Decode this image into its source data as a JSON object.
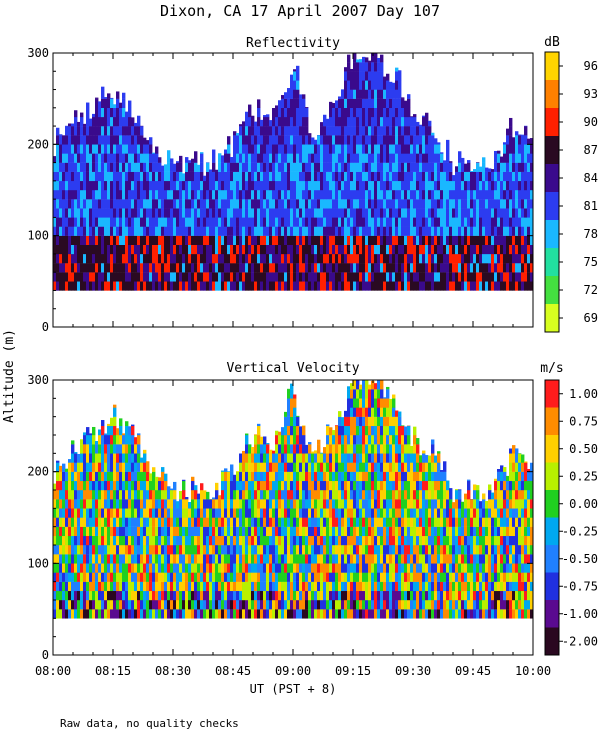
{
  "title": "Dixon, CA 17 April 2007  Day 107",
  "ylabel_shared": "Altitude (m)",
  "xlabel": "UT  (PST + 8)",
  "footnote": "Raw data, no quality checks",
  "x_ticks": [
    "08:00",
    "08:15",
    "08:30",
    "08:45",
    "09:00",
    "09:15",
    "09:30",
    "09:45",
    "10:00"
  ],
  "chart_data": [
    {
      "type": "heatmap",
      "title": "Reflectivity",
      "xlabel": "UT  (PST + 8)",
      "ylabel": "Altitude (m)",
      "xlim": [
        "08:00",
        "10:00"
      ],
      "ylim": [
        0,
        300
      ],
      "y_ticks": [
        0,
        100,
        200,
        300
      ],
      "colorbar_unit": "dB",
      "colorbar_ticks": [
        "96",
        "93",
        "90",
        "87",
        "84",
        "81",
        "78",
        "75",
        "72",
        "69"
      ],
      "colorbar_colors": [
        "#ffd400",
        "#ff8000",
        "#ff2000",
        "#2a0a22",
        "#3a0a8c",
        "#2c3cf0",
        "#1ab8ff",
        "#22e0a0",
        "#44e040",
        "#d8ff20"
      ],
      "data_altitude_range": [
        40,
        300
      ],
      "cloud_top_profile": [
        {
          "time": "08:00",
          "top": 200
        },
        {
          "time": "08:05",
          "top": 220
        },
        {
          "time": "08:10",
          "top": 240
        },
        {
          "time": "08:15",
          "top": 260
        },
        {
          "time": "08:20",
          "top": 240
        },
        {
          "time": "08:25",
          "top": 200
        },
        {
          "time": "08:30",
          "top": 180
        },
        {
          "time": "08:40",
          "top": 180
        },
        {
          "time": "08:45",
          "top": 200
        },
        {
          "time": "08:50",
          "top": 240
        },
        {
          "time": "08:55",
          "top": 230
        },
        {
          "time": "09:00",
          "top": 290
        },
        {
          "time": "09:05",
          "top": 210
        },
        {
          "time": "09:10",
          "top": 250
        },
        {
          "time": "09:15",
          "top": 300
        },
        {
          "time": "09:20",
          "top": 300
        },
        {
          "time": "09:25",
          "top": 280
        },
        {
          "time": "09:30",
          "top": 240
        },
        {
          "time": "09:35",
          "top": 220
        },
        {
          "time": "09:40",
          "top": 180
        },
        {
          "time": "09:50",
          "top": 180
        },
        {
          "time": "09:55",
          "top": 220
        },
        {
          "time": "10:00",
          "top": 200
        }
      ],
      "dominant_levels": [
        {
          "range": "40-100 m",
          "value_dB": 87
        },
        {
          "range": "100-200 m",
          "value_dB": 81
        }
      ]
    },
    {
      "type": "heatmap",
      "title": "Vertical Velocity",
      "xlabel": "UT  (PST + 8)",
      "ylabel": "Altitude (m)",
      "xlim": [
        "08:00",
        "10:00"
      ],
      "ylim": [
        0,
        300
      ],
      "y_ticks": [
        0,
        100,
        200,
        300
      ],
      "colorbar_unit": "m/s",
      "colorbar_ticks": [
        "1.00",
        "0.75",
        "0.50",
        "0.25",
        "0.00",
        "-0.25",
        "-0.50",
        "-0.75",
        "-1.00",
        "-2.00"
      ],
      "colorbar_colors": [
        "#ff1c1c",
        "#ff8c00",
        "#ffd000",
        "#b8f000",
        "#20d020",
        "#00a8f0",
        "#2080ff",
        "#2030e0",
        "#5a0a90",
        "#2a0820"
      ],
      "data_altitude_range": [
        40,
        300
      ],
      "cloud_top_profile": [
        {
          "time": "08:00",
          "top": 200
        },
        {
          "time": "08:05",
          "top": 220
        },
        {
          "time": "08:10",
          "top": 240
        },
        {
          "time": "08:15",
          "top": 260
        },
        {
          "time": "08:20",
          "top": 240
        },
        {
          "time": "08:25",
          "top": 200
        },
        {
          "time": "08:30",
          "top": 180
        },
        {
          "time": "08:40",
          "top": 180
        },
        {
          "time": "08:45",
          "top": 200
        },
        {
          "time": "08:50",
          "top": 240
        },
        {
          "time": "08:55",
          "top": 230
        },
        {
          "time": "09:00",
          "top": 290
        },
        {
          "time": "09:05",
          "top": 210
        },
        {
          "time": "09:10",
          "top": 250
        },
        {
          "time": "09:15",
          "top": 300
        },
        {
          "time": "09:20",
          "top": 300
        },
        {
          "time": "09:25",
          "top": 280
        },
        {
          "time": "09:30",
          "top": 240
        },
        {
          "time": "09:35",
          "top": 220
        },
        {
          "time": "09:40",
          "top": 180
        },
        {
          "time": "09:50",
          "top": 180
        },
        {
          "time": "09:55",
          "top": 220
        },
        {
          "time": "10:00",
          "top": 200
        }
      ]
    }
  ]
}
